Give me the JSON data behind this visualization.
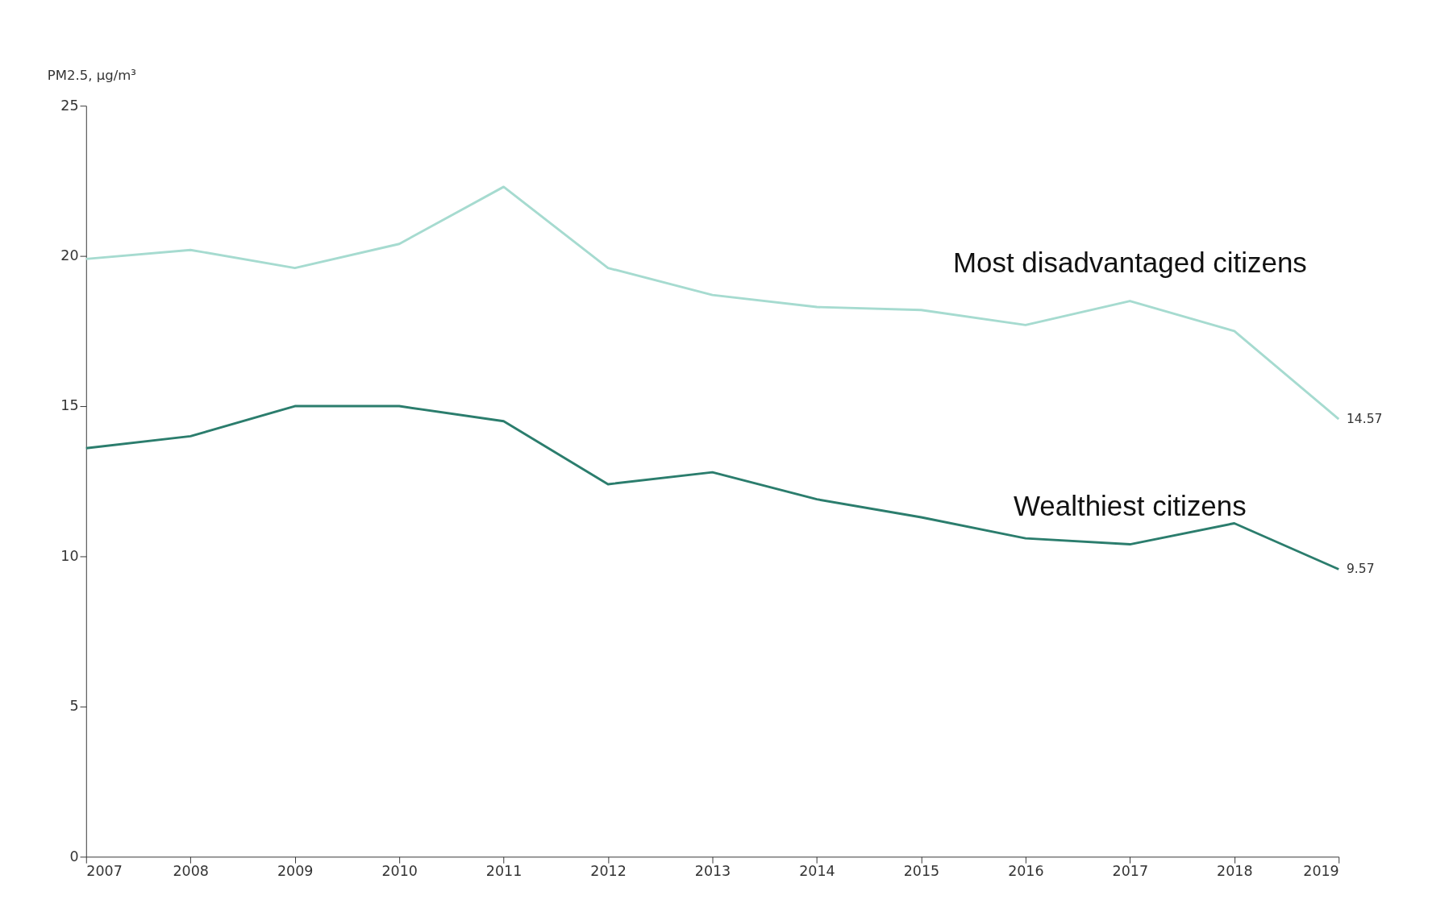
{
  "chart_data": {
    "type": "line",
    "ylabel": "PM2.5, µg/m³",
    "x": [
      2007,
      2008,
      2009,
      2010,
      2011,
      2012,
      2013,
      2014,
      2015,
      2016,
      2017,
      2018,
      2019
    ],
    "series": [
      {
        "name": "Most disadvantaged citizens",
        "color": "#a6dbd0",
        "values": [
          19.9,
          20.2,
          19.6,
          20.4,
          22.3,
          19.6,
          18.7,
          18.3,
          18.2,
          17.7,
          18.5,
          17.5,
          14.57
        ],
        "value_labels": [
          null,
          null,
          null,
          null,
          null,
          null,
          null,
          null,
          null,
          null,
          null,
          null,
          "14.57"
        ]
      },
      {
        "name": "Wealthiest citizens",
        "color": "#2b7d6d",
        "values": [
          13.6,
          14.0,
          15.0,
          15.0,
          14.5,
          12.4,
          12.8,
          11.9,
          11.3,
          10.6,
          10.4,
          11.1,
          9.57
        ],
        "value_labels": [
          null,
          null,
          null,
          null,
          null,
          null,
          null,
          null,
          null,
          null,
          null,
          null,
          "9.57"
        ]
      }
    ],
    "xlim": [
      2007,
      2019
    ],
    "xticks": [
      2007,
      2008,
      2009,
      2010,
      2011,
      2012,
      2013,
      2014,
      2015,
      2016,
      2017,
      2018,
      2019
    ],
    "ylim": [
      0,
      25
    ],
    "yticks": [
      0,
      5,
      10,
      15,
      20,
      25
    ],
    "grid": false,
    "legend": false,
    "marker": "none",
    "line_style": "solid"
  }
}
